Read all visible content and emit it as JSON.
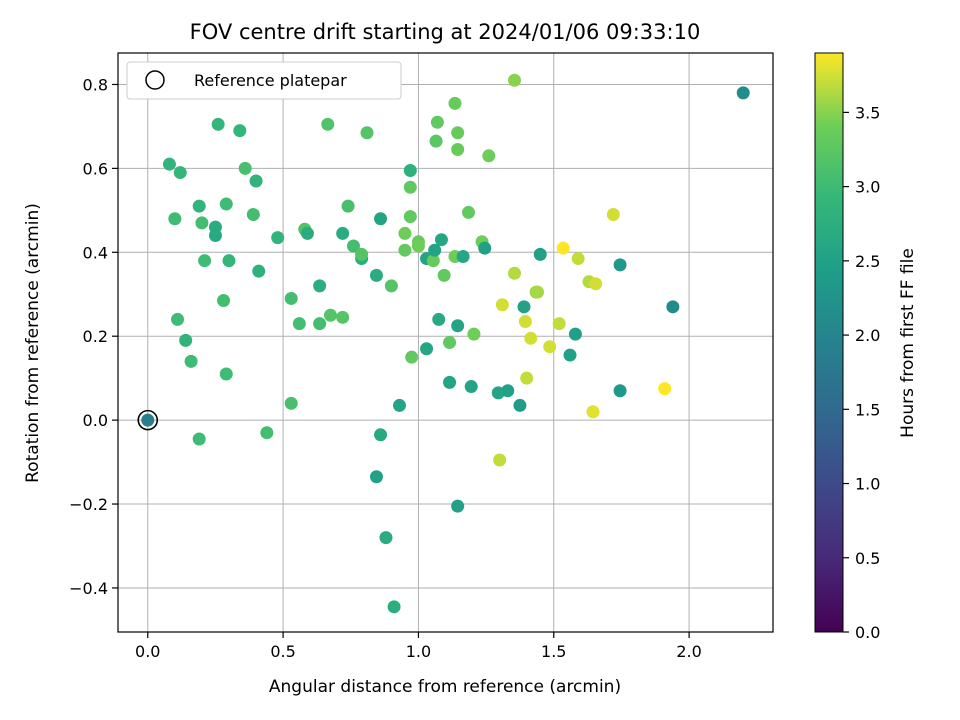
{
  "chart_data": {
    "type": "scatter",
    "title": "FOV centre drift starting at 2024/01/06 09:33:10",
    "xlabel": "Angular distance from reference (arcmin)",
    "ylabel": "Rotation from reference (arcmin)",
    "xlim": [
      -0.11,
      2.31
    ],
    "ylim": [
      -0.505,
      0.875
    ],
    "xticks": [
      0.0,
      0.5,
      1.0,
      1.5,
      2.0
    ],
    "xtick_labels": [
      "0.0",
      "0.5",
      "1.0",
      "1.5",
      "2.0"
    ],
    "yticks": [
      -0.4,
      -0.2,
      0.0,
      0.2,
      0.4,
      0.6,
      0.8
    ],
    "ytick_labels": [
      "−0.4",
      "−0.2",
      "0.0",
      "0.2",
      "0.4",
      "0.6",
      "0.8"
    ],
    "grid": true,
    "legend": {
      "placement": "top-left",
      "entries": [
        "Reference platepar"
      ]
    },
    "reference": {
      "x": 0.0,
      "y": 0.0
    },
    "colorbar": {
      "label": "Hours from first FF file",
      "colormap": "viridis",
      "range": [
        0.0,
        3.9
      ],
      "ticks": [
        0.0,
        0.5,
        1.0,
        1.5,
        2.0,
        2.5,
        3.0,
        3.5
      ],
      "tick_labels": [
        "0.0",
        "0.5",
        "1.0",
        "1.5",
        "2.0",
        "2.5",
        "3.0",
        "3.5"
      ]
    },
    "points": [
      {
        "x": 0.0,
        "y": 0.0,
        "c": 1.9
      },
      {
        "x": 0.08,
        "y": 0.61,
        "c": 2.85
      },
      {
        "x": 0.1,
        "y": 0.48,
        "c": 3.0
      },
      {
        "x": 0.12,
        "y": 0.59,
        "c": 2.9
      },
      {
        "x": 0.11,
        "y": 0.24,
        "c": 3.0
      },
      {
        "x": 0.14,
        "y": 0.19,
        "c": 2.85
      },
      {
        "x": 0.16,
        "y": 0.14,
        "c": 3.0
      },
      {
        "x": 0.19,
        "y": 0.51,
        "c": 2.85
      },
      {
        "x": 0.19,
        "y": -0.045,
        "c": 3.0
      },
      {
        "x": 0.2,
        "y": 0.47,
        "c": 3.05
      },
      {
        "x": 0.21,
        "y": 0.38,
        "c": 3.0
      },
      {
        "x": 0.25,
        "y": 0.46,
        "c": 2.7
      },
      {
        "x": 0.25,
        "y": 0.44,
        "c": 2.65
      },
      {
        "x": 0.26,
        "y": 0.705,
        "c": 2.9
      },
      {
        "x": 0.28,
        "y": 0.285,
        "c": 3.05
      },
      {
        "x": 0.29,
        "y": 0.515,
        "c": 3.0
      },
      {
        "x": 0.29,
        "y": 0.11,
        "c": 3.0
      },
      {
        "x": 0.3,
        "y": 0.38,
        "c": 2.9
      },
      {
        "x": 0.34,
        "y": 0.69,
        "c": 2.9
      },
      {
        "x": 0.36,
        "y": 0.6,
        "c": 3.1
      },
      {
        "x": 0.39,
        "y": 0.49,
        "c": 3.05
      },
      {
        "x": 0.4,
        "y": 0.57,
        "c": 2.85
      },
      {
        "x": 0.41,
        "y": 0.355,
        "c": 2.8
      },
      {
        "x": 0.44,
        "y": -0.03,
        "c": 3.05
      },
      {
        "x": 0.48,
        "y": 0.435,
        "c": 2.85
      },
      {
        "x": 0.53,
        "y": 0.29,
        "c": 3.05
      },
      {
        "x": 0.53,
        "y": 0.04,
        "c": 3.1
      },
      {
        "x": 0.56,
        "y": 0.23,
        "c": 3.05
      },
      {
        "x": 0.58,
        "y": 0.455,
        "c": 3.15
      },
      {
        "x": 0.59,
        "y": 0.445,
        "c": 2.7
      },
      {
        "x": 0.635,
        "y": 0.32,
        "c": 2.75
      },
      {
        "x": 0.635,
        "y": 0.23,
        "c": 3.05
      },
      {
        "x": 0.665,
        "y": 0.705,
        "c": 3.15
      },
      {
        "x": 0.675,
        "y": 0.25,
        "c": 3.2
      },
      {
        "x": 0.72,
        "y": 0.245,
        "c": 3.2
      },
      {
        "x": 0.72,
        "y": 0.445,
        "c": 2.7
      },
      {
        "x": 0.74,
        "y": 0.51,
        "c": 3.1
      },
      {
        "x": 0.76,
        "y": 0.415,
        "c": 3.05
      },
      {
        "x": 0.79,
        "y": 0.385,
        "c": 2.75
      },
      {
        "x": 0.79,
        "y": 0.395,
        "c": 3.2
      },
      {
        "x": 0.81,
        "y": 0.685,
        "c": 3.2
      },
      {
        "x": 0.845,
        "y": 0.345,
        "c": 2.7
      },
      {
        "x": 0.845,
        "y": -0.135,
        "c": 2.5
      },
      {
        "x": 0.86,
        "y": -0.035,
        "c": 2.65
      },
      {
        "x": 0.86,
        "y": 0.48,
        "c": 2.55
      },
      {
        "x": 0.88,
        "y": -0.28,
        "c": 2.7
      },
      {
        "x": 0.9,
        "y": 0.32,
        "c": 3.2
      },
      {
        "x": 0.91,
        "y": -0.445,
        "c": 2.75
      },
      {
        "x": 0.93,
        "y": 0.035,
        "c": 2.55
      },
      {
        "x": 0.95,
        "y": 0.445,
        "c": 3.4
      },
      {
        "x": 0.95,
        "y": 0.405,
        "c": 3.3
      },
      {
        "x": 0.97,
        "y": 0.595,
        "c": 2.8
      },
      {
        "x": 0.97,
        "y": 0.555,
        "c": 3.3
      },
      {
        "x": 0.97,
        "y": 0.485,
        "c": 3.3
      },
      {
        "x": 0.975,
        "y": 0.15,
        "c": 3.3
      },
      {
        "x": 1.0,
        "y": 0.425,
        "c": 3.35
      },
      {
        "x": 1.0,
        "y": 0.415,
        "c": 3.4
      },
      {
        "x": 1.03,
        "y": 0.385,
        "c": 2.55
      },
      {
        "x": 1.03,
        "y": 0.17,
        "c": 2.6
      },
      {
        "x": 1.055,
        "y": 0.38,
        "c": 3.35
      },
      {
        "x": 1.06,
        "y": 0.405,
        "c": 2.55
      },
      {
        "x": 1.065,
        "y": 0.665,
        "c": 3.25
      },
      {
        "x": 1.07,
        "y": 0.71,
        "c": 3.3
      },
      {
        "x": 1.075,
        "y": 0.24,
        "c": 2.65
      },
      {
        "x": 1.085,
        "y": 0.43,
        "c": 2.6
      },
      {
        "x": 1.095,
        "y": 0.345,
        "c": 3.3
      },
      {
        "x": 1.115,
        "y": 0.185,
        "c": 3.3
      },
      {
        "x": 1.115,
        "y": 0.09,
        "c": 2.55
      },
      {
        "x": 1.135,
        "y": 0.755,
        "c": 3.35
      },
      {
        "x": 1.135,
        "y": 0.39,
        "c": 3.4
      },
      {
        "x": 1.145,
        "y": 0.645,
        "c": 3.35
      },
      {
        "x": 1.145,
        "y": 0.685,
        "c": 3.35
      },
      {
        "x": 1.145,
        "y": 0.225,
        "c": 2.55
      },
      {
        "x": 1.145,
        "y": -0.205,
        "c": 2.5
      },
      {
        "x": 1.165,
        "y": 0.39,
        "c": 2.6
      },
      {
        "x": 1.185,
        "y": 0.495,
        "c": 3.3
      },
      {
        "x": 1.195,
        "y": 0.08,
        "c": 2.55
      },
      {
        "x": 1.205,
        "y": 0.205,
        "c": 3.4
      },
      {
        "x": 1.235,
        "y": 0.425,
        "c": 3.4
      },
      {
        "x": 1.245,
        "y": 0.41,
        "c": 2.5
      },
      {
        "x": 1.26,
        "y": 0.63,
        "c": 3.4
      },
      {
        "x": 1.295,
        "y": 0.065,
        "c": 2.55
      },
      {
        "x": 1.3,
        "y": -0.095,
        "c": 3.7
      },
      {
        "x": 1.31,
        "y": 0.275,
        "c": 3.75
      },
      {
        "x": 1.33,
        "y": 0.07,
        "c": 2.5
      },
      {
        "x": 1.355,
        "y": 0.81,
        "c": 3.5
      },
      {
        "x": 1.355,
        "y": 0.35,
        "c": 3.65
      },
      {
        "x": 1.375,
        "y": 0.035,
        "c": 2.4
      },
      {
        "x": 1.39,
        "y": 0.27,
        "c": 2.5
      },
      {
        "x": 1.395,
        "y": 0.235,
        "c": 3.75
      },
      {
        "x": 1.4,
        "y": 0.1,
        "c": 3.7
      },
      {
        "x": 1.415,
        "y": 0.195,
        "c": 3.75
      },
      {
        "x": 1.435,
        "y": 0.305,
        "c": 3.55
      },
      {
        "x": 1.44,
        "y": 0.305,
        "c": 3.6
      },
      {
        "x": 1.45,
        "y": 0.395,
        "c": 2.5
      },
      {
        "x": 1.485,
        "y": 0.175,
        "c": 3.75
      },
      {
        "x": 1.52,
        "y": 0.23,
        "c": 3.7
      },
      {
        "x": 1.535,
        "y": 0.41,
        "c": 3.9
      },
      {
        "x": 1.56,
        "y": 0.155,
        "c": 2.5
      },
      {
        "x": 1.58,
        "y": 0.205,
        "c": 2.45
      },
      {
        "x": 1.59,
        "y": 0.385,
        "c": 3.7
      },
      {
        "x": 1.63,
        "y": 0.33,
        "c": 3.65
      },
      {
        "x": 1.645,
        "y": 0.02,
        "c": 3.8
      },
      {
        "x": 1.655,
        "y": 0.325,
        "c": 3.75
      },
      {
        "x": 1.72,
        "y": 0.49,
        "c": 3.75
      },
      {
        "x": 1.745,
        "y": 0.37,
        "c": 2.35
      },
      {
        "x": 1.745,
        "y": 0.07,
        "c": 2.35
      },
      {
        "x": 1.91,
        "y": 0.075,
        "c": 3.9
      },
      {
        "x": 1.94,
        "y": 0.27,
        "c": 2.1
      },
      {
        "x": 2.2,
        "y": 0.78,
        "c": 2.1
      }
    ]
  }
}
